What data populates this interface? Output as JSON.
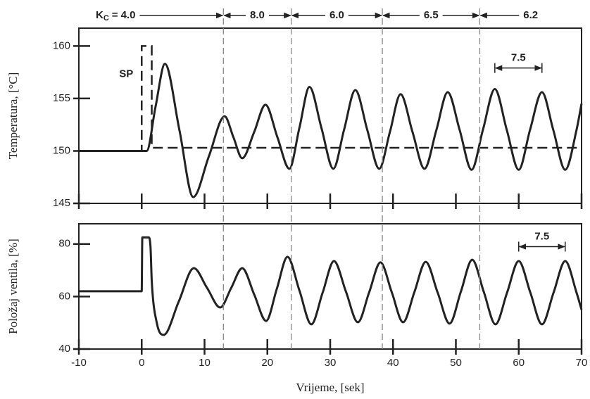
{
  "chart_data": [
    {
      "type": "line",
      "ylabel": "Temperatura, [°C]",
      "xlim": [
        -10,
        70
      ],
      "ylim": [
        145,
        161.7
      ],
      "xticks": [
        -10,
        0,
        10,
        20,
        30,
        40,
        50,
        60,
        70
      ],
      "yticks": [
        145,
        150,
        155,
        160
      ],
      "show_xtick_labels": false,
      "series": [
        {
          "color": "#222222",
          "line_style": "solid",
          "x": [
            -10,
            0.8,
            2.2,
            3.7,
            6,
            8.2,
            10.7,
            13.2,
            14.6,
            16,
            17.9,
            19.7,
            21.6,
            23.5,
            25.1,
            26.7,
            28.6,
            30.5,
            32.2,
            34,
            35.9,
            37.8,
            39.5,
            41.2,
            43.1,
            45,
            46.9,
            48.7,
            50.6,
            52.5,
            54.3,
            56.2,
            58.1,
            60,
            61.8,
            63.7,
            65.5,
            67.4,
            69.2,
            70
          ],
          "values": [
            150,
            150,
            154.2,
            158.3,
            152,
            145.6,
            149.5,
            153.3,
            151.3,
            149.3,
            151.8,
            154.4,
            151.3,
            148.3,
            152.2,
            156.1,
            152.2,
            148.3,
            152,
            155.8,
            152,
            148.3,
            151.8,
            155.4,
            151.8,
            148.3,
            152,
            155.6,
            152,
            148.2,
            152,
            155.9,
            152,
            148.2,
            152,
            155.6,
            152,
            148.2,
            152,
            154.5
          ]
        },
        {
          "name": "SP",
          "color": "#222222",
          "line_style": "dashed",
          "x": [
            -10,
            0,
            0,
            1.6,
            1.6,
            70
          ],
          "values": [
            150,
            150,
            160,
            160,
            150.3,
            150.3
          ]
        }
      ],
      "controller": {
        "symbol": "K",
        "subscript": "C",
        "equals": "=",
        "gains": [
          {
            "value": 4,
            "label": "4.0"
          },
          {
            "value": 8,
            "label": "8.0"
          },
          {
            "value": 6,
            "label": "6.0"
          },
          {
            "value": 6.5,
            "label": "6.5"
          },
          {
            "value": 6.2,
            "label": "6.2"
          }
        ],
        "change_x": [
          13,
          23.8,
          38.3,
          53.8
        ]
      },
      "period": {
        "label": 7.5,
        "x_from": 56.2,
        "x_to": 63.7,
        "y": 157.9
      }
    },
    {
      "type": "line",
      "ylabel": "Položaj ventila, [%]",
      "xlabel": "Vrijeme, [sek]",
      "xlim": [
        -10,
        70
      ],
      "ylim": [
        40,
        87.7
      ],
      "xticks": [
        -10,
        0,
        10,
        20,
        30,
        40,
        50,
        60,
        70
      ],
      "yticks": [
        40,
        60,
        80
      ],
      "show_xtick_labels": true,
      "series": [
        {
          "color": "#222222",
          "line_style": "solid",
          "x": [
            -10,
            0,
            0.1,
            1.1,
            1.4,
            1.6,
            2.4,
            3.5,
            5.9,
            8.3,
            10.4,
            12.5,
            14.25,
            16,
            17.9,
            19.8,
            21.5,
            23.2,
            25.1,
            27,
            28.8,
            30.6,
            32.5,
            34.4,
            36.2,
            38,
            39.8,
            41.6,
            43.4,
            45.2,
            47.1,
            49,
            50.8,
            52.6,
            54.45,
            56.3,
            58.15,
            60,
            61.85,
            63.7,
            65.55,
            67.4,
            69.2,
            70
          ],
          "values": [
            62,
            62,
            82.5,
            82.5,
            79,
            66,
            50,
            45.4,
            58.1,
            70.8,
            63.3,
            55.8,
            63.3,
            70.8,
            60.8,
            50.7,
            62.9,
            75.1,
            62.3,
            49.4,
            61.5,
            73.5,
            61.9,
            50.2,
            61.6,
            73,
            61.6,
            50.2,
            61.7,
            73.2,
            61.5,
            49.7,
            61.9,
            74,
            61.7,
            49.4,
            61.5,
            73.5,
            61.5,
            49.4,
            61.5,
            73.5,
            61.5,
            55
          ]
        }
      ],
      "period": {
        "label": 7.5,
        "x_from": 60,
        "x_to": 67.4,
        "y": 79
      }
    }
  ]
}
